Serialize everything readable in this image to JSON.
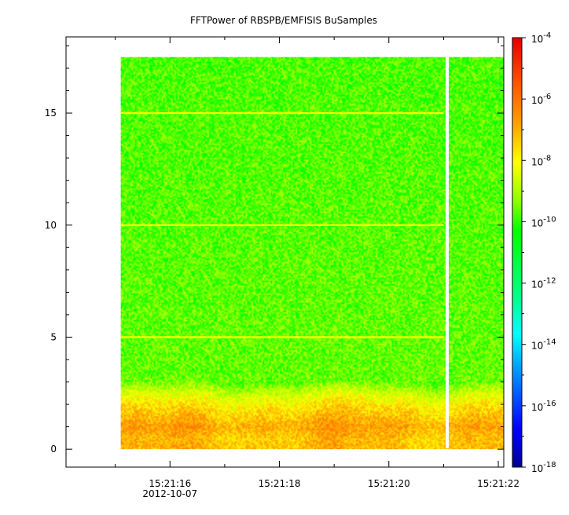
{
  "chart_data": {
    "type": "heatmap",
    "title": "FFTPower of RBSPB/EMFISIS  BuSamples",
    "xlabel": "",
    "ylabel": "",
    "x_ticks": [
      {
        "label": "15:21:16",
        "sub": "2012-10-07"
      },
      {
        "label": "15:21:18"
      },
      {
        "label": "15:21:20"
      },
      {
        "label": "15:21:22"
      }
    ],
    "xlim": [
      "15:21:14.1",
      "15:21:22.1"
    ],
    "ylim": [
      -0.8,
      18.4
    ],
    "y_ticks": [
      0,
      5,
      10,
      15
    ],
    "colorbar": {
      "scale": "log",
      "range": [
        1e-18,
        0.0001
      ],
      "ticks": [
        {
          "base": "10",
          "exp": "-4"
        },
        {
          "base": "10",
          "exp": "-6"
        },
        {
          "base": "10",
          "exp": "-8"
        },
        {
          "base": "10",
          "exp": "-10"
        },
        {
          "base": "10",
          "exp": "-12"
        },
        {
          "base": "10",
          "exp": "-14"
        },
        {
          "base": "10",
          "exp": "-16"
        },
        {
          "base": "10",
          "exp": "-18"
        }
      ],
      "colormap": [
        "#0000a0",
        "#0000ff",
        "#00a0ff",
        "#00ffff",
        "#00ff80",
        "#00ff00",
        "#80ff00",
        "#ffff00",
        "#ffa000",
        "#ff6000",
        "#ff0000",
        "#e00000"
      ]
    },
    "data_extent": {
      "t_start": "15:21:15.1",
      "t_end": "15:21:22.1",
      "f_min": 0,
      "f_max": 17.5
    },
    "data_gap": {
      "t_start": "15:21:21.0",
      "t_end": "15:21:21.1"
    },
    "harmonic_lines": [
      5,
      10,
      15
    ],
    "power_profile": {
      "description_levels_log10": [
        {
          "f": 0.5,
          "level": -7.2
        },
        {
          "f": 1.0,
          "level": -6.8
        },
        {
          "f": 1.5,
          "level": -7.3
        },
        {
          "f": 2.0,
          "level": -7.8
        },
        {
          "f": 2.5,
          "level": -8.6
        },
        {
          "f": 3.0,
          "level": -9.6
        },
        {
          "f": 17.5,
          "level": -9.8
        }
      ],
      "line_level": -8.2
    }
  }
}
